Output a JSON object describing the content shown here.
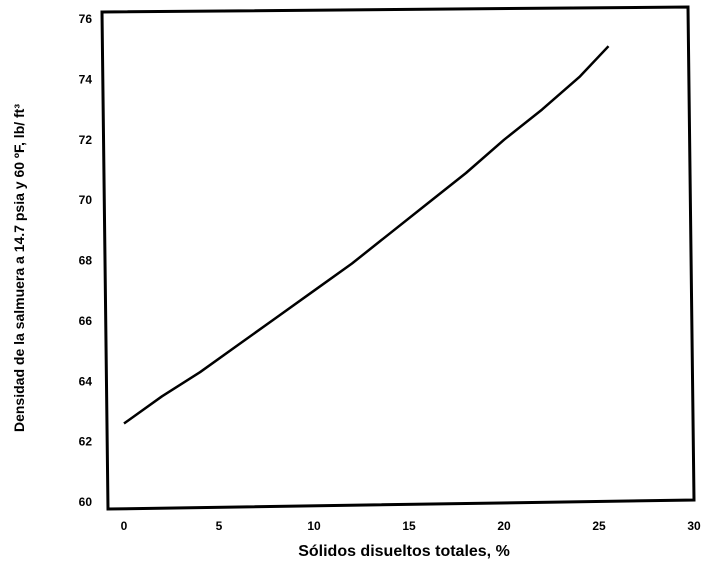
{
  "chart_data": {
    "type": "line",
    "xlabel": "Sólidos disueltos totales, %",
    "ylabel": "Densidad de la salmuera a 14.7 psia y 60 ºF, lb/ ft³",
    "xlim": [
      -1,
      30
    ],
    "ylim": [
      60,
      76
    ],
    "x_ticks": [
      "0",
      "5",
      "10",
      "15",
      "20",
      "25",
      "30"
    ],
    "y_ticks": [
      "60",
      "62",
      "64",
      "66",
      "68",
      "70",
      "72",
      "74",
      "76"
    ],
    "grid": false,
    "series": [
      {
        "x": [
          0,
          2,
          4,
          6,
          8,
          10,
          12,
          14,
          16,
          18,
          20,
          22,
          24,
          25.5
        ],
        "y": [
          62.6,
          63.5,
          64.3,
          65.2,
          66.1,
          67.0,
          67.9,
          68.9,
          69.9,
          70.9,
          72.0,
          73.0,
          74.1,
          75.1
        ]
      }
    ]
  }
}
